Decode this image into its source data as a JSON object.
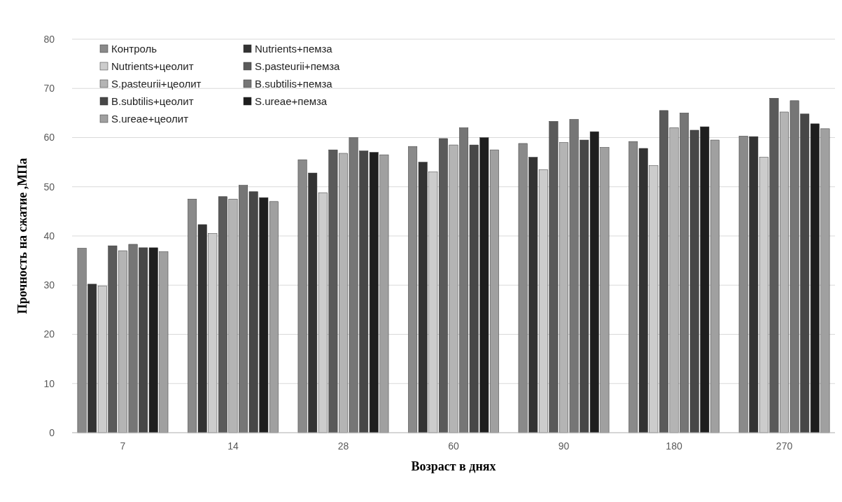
{
  "chart_data": {
    "type": "bar",
    "xlabel": "Возраст в днях",
    "ylabel": "Прочность на сжатие ,МПа",
    "categories": [
      "7",
      "14",
      "28",
      "60",
      "90",
      "180",
      "270"
    ],
    "ylim": [
      0,
      80
    ],
    "yticks": [
      0,
      10,
      20,
      30,
      40,
      50,
      60,
      70,
      80
    ],
    "grid": "y",
    "legend": "top left",
    "series": [
      {
        "name": "Контроль",
        "color": "#8a8a8a",
        "values": [
          37.5,
          47.5,
          55.5,
          58.2,
          58.8,
          59.2,
          60.3
        ]
      },
      {
        "name": "Nutrients+пемза",
        "color": "#333333",
        "values": [
          30.2,
          42.3,
          52.8,
          55,
          56,
          57.8,
          60.2
        ]
      },
      {
        "name": "Nutrients+цеолит",
        "color": "#cccccc",
        "values": [
          29.8,
          40.5,
          48.8,
          53,
          53.5,
          54.3,
          56
        ]
      },
      {
        "name": "S.pasteurii+пемза",
        "color": "#5a5a5a",
        "values": [
          38,
          48,
          57.5,
          59.8,
          63.3,
          65.5,
          68
        ]
      },
      {
        "name": "S.pasteurii+цеолит",
        "color": "#b4b4b4",
        "values": [
          37,
          47.5,
          56.8,
          58.5,
          59,
          62,
          65.2
        ]
      },
      {
        "name": "B.subtilis+пемза",
        "color": "#767676",
        "values": [
          38.3,
          50.3,
          60,
          62,
          63.7,
          65,
          67.5
        ]
      },
      {
        "name": "B.subtilis+цеолит",
        "color": "#474747",
        "values": [
          37.6,
          49,
          57.3,
          58.5,
          59.5,
          61.5,
          64.8
        ]
      },
      {
        "name": "S.ureae+пемза",
        "color": "#1e1e1e",
        "values": [
          37.6,
          47.8,
          57,
          60,
          61.2,
          62.2,
          62.8
        ]
      },
      {
        "name": "S.ureae+цеолит",
        "color": "#a0a0a0",
        "values": [
          36.8,
          47,
          56.5,
          57.5,
          58,
          59.5,
          61.8
        ]
      }
    ]
  }
}
